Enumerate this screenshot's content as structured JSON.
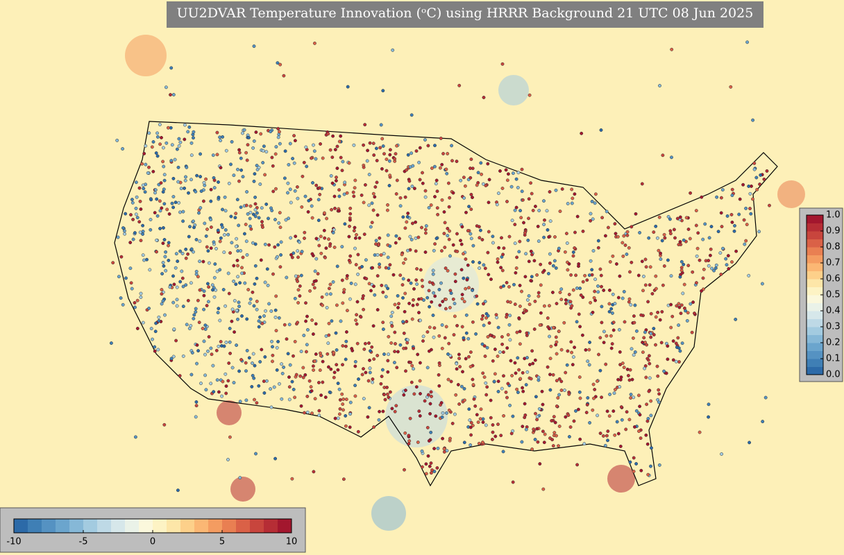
{
  "title": "UU2DVAR Temperature Innovation (ᵒC) using HRRR Background 21 UTC 08 Jun 2025",
  "colors": [
    "#2c6aa8",
    "#3f7fb5",
    "#5592c2",
    "#6ba5cd",
    "#86b8d7",
    "#a3cbe0",
    "#bed9e6",
    "#d6e7ea",
    "#eaf2e8",
    "#fbf8dc",
    "#fdf3c4",
    "#fde6a8",
    "#fdd08a",
    "#fbb774",
    "#f49c61",
    "#e97f52",
    "#da6147",
    "#c8453d",
    "#b62d35",
    "#a3172e"
  ],
  "innovation_colorbar": {
    "xlim": [
      -10,
      10
    ],
    "xticks": [
      -10,
      -5,
      0,
      5,
      10
    ]
  },
  "weight_colorbar": {
    "ylim": [
      0,
      1
    ],
    "yticks": [
      {
        "value": 0,
        "label": "0.0"
      },
      0.1,
      0.2,
      0.3,
      0.4,
      0.5,
      0.6,
      0.7,
      0.8,
      0.9,
      {
        "value": 1,
        "label": "1.0"
      }
    ]
  }
}
